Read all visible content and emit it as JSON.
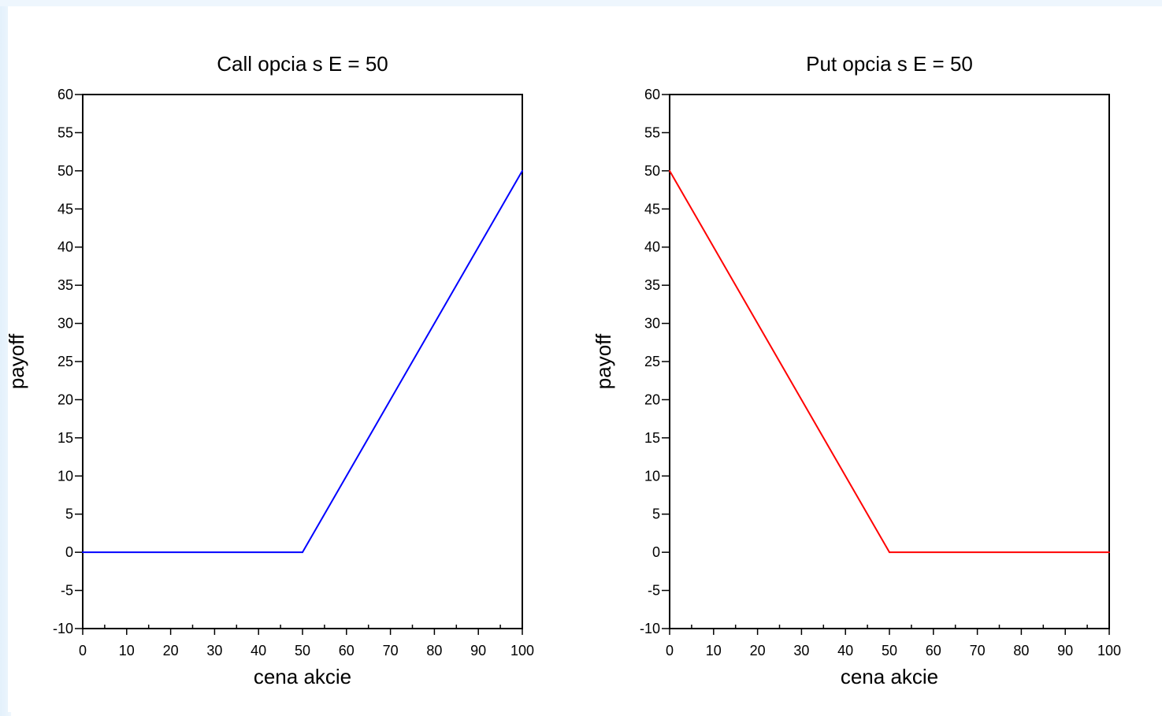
{
  "chart_data": [
    {
      "type": "line",
      "title": "Call opcia s E = 50",
      "xlabel": "cena akcie",
      "ylabel": "payoff",
      "xlim": [
        0,
        100
      ],
      "ylim": [
        -10,
        60
      ],
      "x_ticks": [
        0,
        10,
        20,
        30,
        40,
        50,
        60,
        70,
        80,
        90,
        100
      ],
      "y_ticks": [
        -10,
        -5,
        0,
        5,
        10,
        15,
        20,
        25,
        30,
        35,
        40,
        45,
        50,
        55,
        60
      ],
      "grid": false,
      "series": [
        {
          "color": "#0000ff",
          "x": [
            0,
            50,
            100
          ],
          "y": [
            0,
            0,
            50
          ]
        }
      ]
    },
    {
      "type": "line",
      "title": "Put opcia s E = 50",
      "xlabel": "cena akcie",
      "ylabel": "payoff",
      "xlim": [
        0,
        100
      ],
      "ylim": [
        -10,
        60
      ],
      "x_ticks": [
        0,
        10,
        20,
        30,
        40,
        50,
        60,
        70,
        80,
        90,
        100
      ],
      "y_ticks": [
        -10,
        -5,
        0,
        5,
        10,
        15,
        20,
        25,
        30,
        35,
        40,
        45,
        50,
        55,
        60
      ],
      "grid": false,
      "series": [
        {
          "color": "#ff0000",
          "x": [
            0,
            50,
            100
          ],
          "y": [
            50,
            0,
            0
          ]
        }
      ]
    }
  ]
}
